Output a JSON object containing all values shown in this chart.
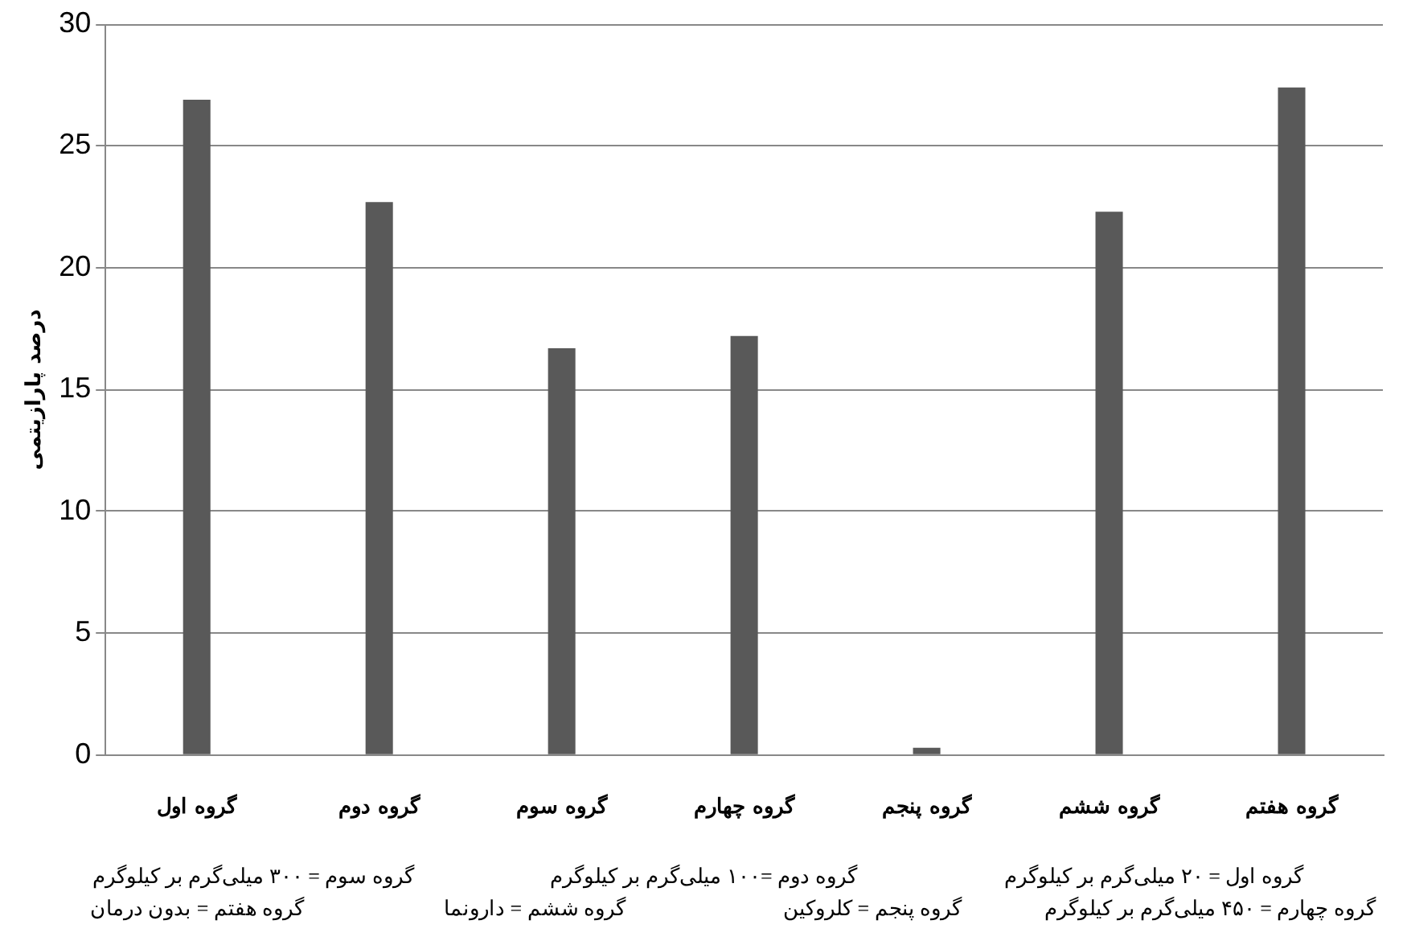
{
  "chart_data": {
    "type": "bar",
    "ylabel": "درصد پارازیتمی",
    "categories": [
      "گروه اول",
      "گروه دوم",
      "گروه سوم",
      "گروه چهارم",
      "گروه پنجم",
      "گروه ششم",
      "گروه هفتم"
    ],
    "values": [
      26.9,
      22.7,
      16.7,
      17.2,
      0.3,
      22.3,
      27.4
    ],
    "color": "#595959",
    "ylim": [
      0,
      30
    ],
    "yticks": [
      0,
      5,
      10,
      15,
      20,
      25,
      30
    ],
    "grid": "y",
    "legend": false,
    "annotations": [
      "گروه اول = ۲۰ میلی‌گرم بر کیلوگرم",
      "گروه دوم =۱۰۰ میلی‌گرم بر کیلوگرم",
      "گروه سوم = ۳۰۰ میلی‌گرم بر کیلوگرم",
      "گروه چهارم = ۴۵۰ میلی‌گرم بر کیلوگرم",
      "گروه پنجم = کلروکین",
      "گروه ششم = دارونما",
      "گروه هفتم = بدون درمان"
    ]
  }
}
